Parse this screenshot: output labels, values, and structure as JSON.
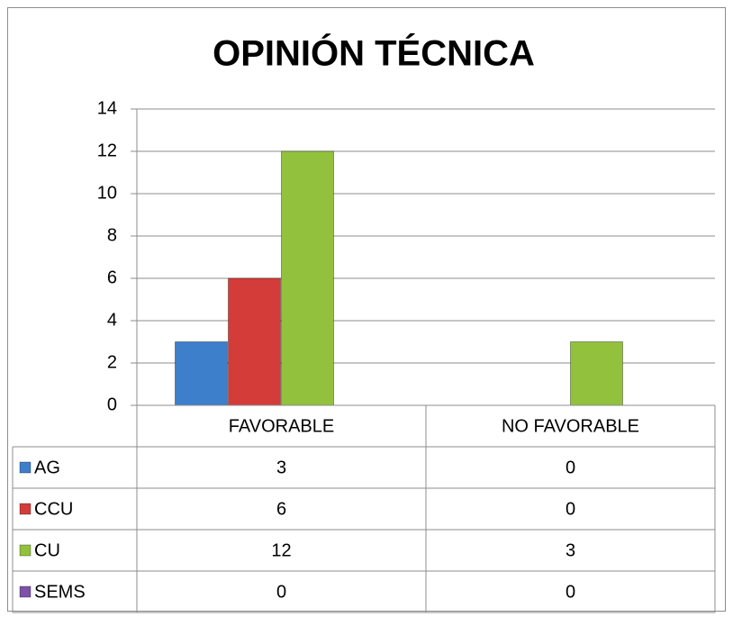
{
  "chart_data": {
    "type": "bar",
    "title": "OPINIÓN TÉCNICA",
    "categories": [
      "FAVORABLE",
      "NO FAVORABLE"
    ],
    "series": [
      {
        "name": "AG",
        "color": "#3d7fca",
        "values": [
          3,
          0
        ]
      },
      {
        "name": "CCU",
        "color": "#d43c3a",
        "values": [
          6,
          0
        ]
      },
      {
        "name": "CU",
        "color": "#92c13d",
        "values": [
          12,
          3
        ]
      },
      {
        "name": "SEMS",
        "color": "#7d52a8",
        "values": [
          0,
          0
        ]
      }
    ],
    "ylim": [
      0,
      14
    ],
    "yticks": [
      0,
      2,
      4,
      6,
      8,
      10,
      12,
      14
    ],
    "grid": true,
    "data_table": true
  }
}
